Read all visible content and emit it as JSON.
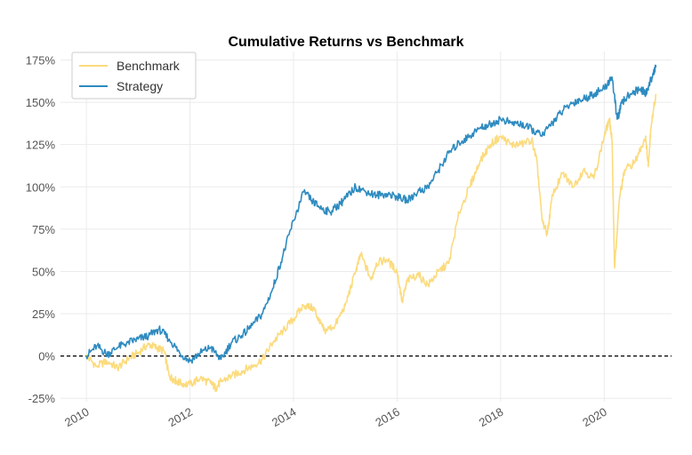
{
  "chart_data": {
    "type": "line",
    "title": "Cumulative Returns vs Benchmark",
    "xlabel": "",
    "ylabel": "",
    "x_ticks": [
      "2010",
      "2012",
      "2014",
      "2016",
      "2018",
      "2020"
    ],
    "y_ticks": [
      "-25%",
      "0%",
      "25%",
      "50%",
      "75%",
      "100%",
      "125%",
      "150%",
      "175%"
    ],
    "xlim": [
      2009.5,
      2021.3
    ],
    "ylim": [
      -27,
      180
    ],
    "grid": true,
    "legend_position": "top-left",
    "reference_line": {
      "y": 0,
      "style": "dashed",
      "color": "#000000"
    },
    "series": [
      {
        "name": "Benchmark",
        "color": "#fbdb7d",
        "x": [
          2010.0,
          2010.2,
          2010.4,
          2010.6,
          2010.8,
          2011.0,
          2011.2,
          2011.35,
          2011.5,
          2011.6,
          2011.7,
          2011.8,
          2012.0,
          2012.2,
          2012.4,
          2012.5,
          2012.6,
          2012.8,
          2013.0,
          2013.2,
          2013.4,
          2013.6,
          2013.8,
          2014.0,
          2014.2,
          2014.4,
          2014.5,
          2014.6,
          2014.8,
          2015.0,
          2015.2,
          2015.3,
          2015.5,
          2015.6,
          2015.8,
          2016.0,
          2016.1,
          2016.2,
          2016.4,
          2016.6,
          2016.8,
          2017.0,
          2017.2,
          2017.4,
          2017.6,
          2017.8,
          2018.0,
          2018.2,
          2018.4,
          2018.6,
          2018.7,
          2018.8,
          2018.9,
          2019.0,
          2019.2,
          2019.4,
          2019.6,
          2019.8,
          2020.0,
          2020.1,
          2020.15,
          2020.2,
          2020.3,
          2020.4,
          2020.6,
          2020.8,
          2020.85,
          2020.9,
          2021.0
        ],
        "values": [
          0,
          -6,
          -3,
          -7,
          -2,
          2,
          7,
          5,
          3,
          -12,
          -14,
          -16,
          -17,
          -13,
          -16,
          -19,
          -15,
          -12,
          -9,
          -6,
          -2,
          8,
          15,
          22,
          30,
          28,
          20,
          15,
          18,
          30,
          50,
          60,
          45,
          55,
          57,
          50,
          32,
          45,
          48,
          42,
          50,
          55,
          85,
          100,
          115,
          125,
          130,
          125,
          125,
          128,
          115,
          80,
          72,
          95,
          108,
          100,
          110,
          105,
          130,
          140,
          128,
          52,
          95,
          110,
          115,
          130,
          112,
          135,
          155
        ]
      },
      {
        "name": "Strategy",
        "color": "#2e8bc0",
        "x": [
          2010.0,
          2010.2,
          2010.4,
          2010.6,
          2010.8,
          2011.0,
          2011.2,
          2011.4,
          2011.6,
          2011.8,
          2012.0,
          2012.2,
          2012.4,
          2012.6,
          2012.8,
          2013.0,
          2013.2,
          2013.4,
          2013.6,
          2013.8,
          2014.0,
          2014.2,
          2014.35,
          2014.5,
          2014.7,
          2014.9,
          2015.0,
          2015.2,
          2015.4,
          2015.6,
          2015.8,
          2016.0,
          2016.2,
          2016.4,
          2016.6,
          2016.8,
          2017.0,
          2017.2,
          2017.4,
          2017.6,
          2017.8,
          2018.0,
          2018.2,
          2018.4,
          2018.6,
          2018.8,
          2019.0,
          2019.2,
          2019.4,
          2019.6,
          2019.8,
          2020.0,
          2020.15,
          2020.25,
          2020.35,
          2020.5,
          2020.7,
          2020.8,
          2020.9,
          2021.0
        ],
        "values": [
          0,
          6,
          1,
          5,
          8,
          10,
          12,
          16,
          10,
          2,
          -3,
          2,
          5,
          -2,
          8,
          12,
          18,
          25,
          40,
          60,
          80,
          97,
          92,
          88,
          85,
          90,
          93,
          100,
          97,
          95,
          96,
          94,
          92,
          97,
          100,
          110,
          120,
          126,
          130,
          135,
          137,
          140,
          138,
          137,
          134,
          130,
          138,
          145,
          150,
          152,
          155,
          158,
          165,
          140,
          150,
          155,
          158,
          155,
          163,
          172
        ]
      }
    ]
  }
}
